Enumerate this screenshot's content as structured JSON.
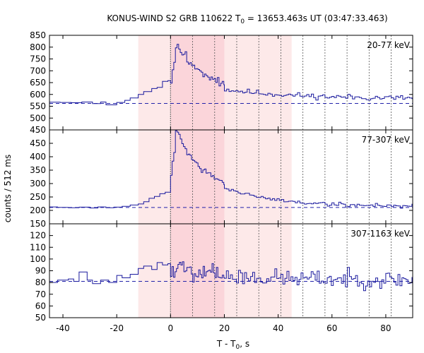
{
  "chart_data": {
    "type": "line",
    "title_prefix": "KONUS-WIND S2 GRB 110622 T",
    "title_sub": "0",
    "title_suffix": " = 13653.463s UT (03:47:33.463)",
    "xlabel_prefix": "T - T",
    "xlabel_sub": "0",
    "xlabel_suffix": ", s",
    "ylabel": "counts / 512 ms",
    "xlim": [
      -45,
      90
    ],
    "xticks": [
      -40,
      -20,
      0,
      20,
      40,
      60,
      80
    ],
    "light_band": [
      -12,
      45
    ],
    "dark_band": [
      0,
      20
    ],
    "vlines_dotted": [
      0,
      8.2,
      16.4,
      24.6,
      32.8,
      41,
      49.2,
      57.4,
      65.6,
      73.8,
      82
    ],
    "panels": [
      {
        "label": "20-77 keV",
        "ylim": [
          450,
          850
        ],
        "yticks": [
          450,
          500,
          550,
          600,
          650,
          700,
          750,
          800,
          850
        ],
        "background": 562,
        "pre": [
          [
            -45,
            567
          ],
          [
            -41,
            566
          ],
          [
            -37,
            565
          ],
          [
            -33,
            568
          ],
          [
            -29,
            561
          ],
          [
            -26,
            568
          ],
          [
            -24,
            556
          ],
          [
            -20,
            566
          ],
          [
            -17,
            575
          ],
          [
            -15,
            585
          ],
          [
            -12,
            600
          ],
          [
            -10,
            612
          ],
          [
            -7,
            625
          ],
          [
            -5,
            630
          ],
          [
            -3,
            655
          ],
          [
            -1,
            658
          ]
        ],
        "peak": {
          "start": 0,
          "end": 20,
          "step": 0.6,
          "t0": 2,
          "amp": 215,
          "tau": 12,
          "base": 595,
          "noise": 28,
          "seed": 3
        },
        "decay": {
          "start": 20,
          "end": 90,
          "step": 0.85,
          "amp": 40,
          "tau": 25,
          "base": 582,
          "noise": 18,
          "seed": 11
        }
      },
      {
        "label": "77-307 keV",
        "ylim": [
          150,
          500
        ],
        "yticks": [
          150,
          200,
          250,
          300,
          350,
          400,
          450,
          500
        ],
        "background": 211,
        "pre": [
          [
            -45,
            213
          ],
          [
            -42,
            211
          ],
          [
            -38,
            210
          ],
          [
            -34,
            212
          ],
          [
            -30,
            209
          ],
          [
            -27,
            213
          ],
          [
            -24,
            210
          ],
          [
            -21,
            212
          ],
          [
            -18,
            215
          ],
          [
            -15,
            220
          ],
          [
            -12,
            224
          ],
          [
            -10,
            232
          ],
          [
            -8,
            245
          ],
          [
            -6,
            252
          ],
          [
            -4,
            262
          ],
          [
            -2,
            268
          ]
        ],
        "peak": {
          "start": 0,
          "end": 20,
          "step": 0.6,
          "t0": 2,
          "amp": 225,
          "tau": 9,
          "base": 275,
          "noise": 22,
          "seed": 7
        },
        "decay": {
          "start": 20,
          "end": 90,
          "step": 0.85,
          "amp": 70,
          "tau": 18,
          "base": 215,
          "noise": 12,
          "seed": 19
        }
      },
      {
        "label": "307-1163 keV",
        "ylim": [
          50,
          130
        ],
        "yticks": [
          50,
          60,
          70,
          80,
          90,
          100,
          110,
          120,
          130
        ],
        "background": 81,
        "pre": [
          [
            -45,
            80
          ],
          [
            -42,
            82
          ],
          [
            -38,
            83
          ],
          [
            -36,
            81
          ],
          [
            -34,
            89
          ],
          [
            -31,
            82
          ],
          [
            -29,
            79
          ],
          [
            -26,
            82
          ],
          [
            -23,
            80
          ],
          [
            -20,
            86
          ],
          [
            -18,
            84
          ],
          [
            -15,
            87
          ],
          [
            -12,
            92
          ],
          [
            -10,
            94
          ],
          [
            -7,
            91
          ],
          [
            -5,
            97
          ],
          [
            -3,
            95
          ],
          [
            -1,
            96
          ]
        ],
        "peak": {
          "start": 0,
          "end": 20,
          "step": 0.55,
          "t0": 2,
          "amp": 8,
          "tau": 12,
          "base": 86,
          "noise": 14,
          "seed": 5
        },
        "decay": {
          "start": 20,
          "end": 90,
          "step": 0.75,
          "amp": 4,
          "tau": 25,
          "base": 82,
          "noise": 11,
          "seed": 23
        }
      }
    ]
  }
}
